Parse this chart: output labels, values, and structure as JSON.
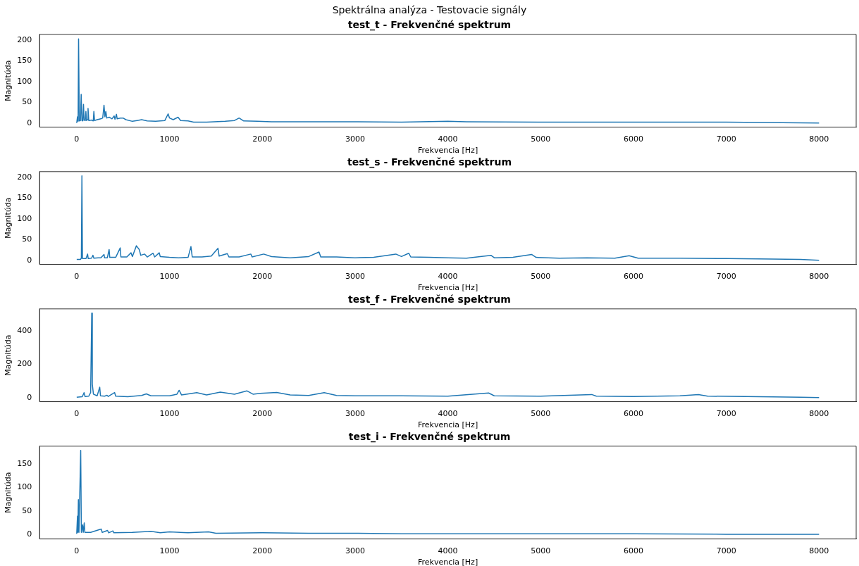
{
  "chart_data": [
    {
      "type": "line",
      "title": "Spektrálna analýza - Testovacie signály",
      "subtitle": "test_t - Frekvenčné spektrum",
      "xlabel": "Frekvencia [Hz]",
      "ylabel": "Magnitúda",
      "color": "#1f77b4",
      "xlim": [
        -400,
        8400
      ],
      "ylim": [
        -10,
        214
      ],
      "xticks": [
        0,
        1000,
        2000,
        3000,
        4000,
        5000,
        6000,
        7000,
        8000
      ],
      "yticks": [
        0,
        50,
        100,
        150,
        200
      ],
      "x": [
        0,
        8,
        15,
        20,
        28,
        40,
        48,
        56,
        66,
        73,
        80,
        92,
        99,
        106,
        116,
        122,
        130,
        160,
        178,
        185,
        192,
        220,
        260,
        280,
        294,
        304,
        314,
        324,
        350,
        380,
        403,
        412,
        428,
        436,
        470,
        500,
        530,
        600,
        650,
        700,
        760,
        850,
        950,
        985,
        1000,
        1040,
        1092,
        1120,
        1200,
        1260,
        1400,
        1600,
        1700,
        1750,
        1800,
        1950,
        2100,
        2500,
        3000,
        3500,
        4000,
        4200,
        5000,
        6000,
        7000,
        7600,
        8000
      ],
      "values": [
        0,
        15,
        4,
        203,
        5,
        6,
        69,
        6,
        5,
        45,
        7,
        6,
        28,
        6,
        8,
        35,
        6,
        7,
        5,
        28,
        6,
        8,
        10,
        12,
        43,
        15,
        28,
        12,
        14,
        10,
        17,
        9,
        21,
        10,
        12,
        12,
        8,
        4,
        6,
        8,
        5,
        4,
        6,
        22,
        12,
        8,
        14,
        6,
        5,
        2,
        2,
        4,
        6,
        12,
        5,
        4,
        3,
        3,
        3,
        2,
        4,
        3,
        2,
        2,
        2,
        1,
        0
      ]
    },
    {
      "type": "line",
      "title": "test_s - Frekvenčné spektrum",
      "xlabel": "Frekvencia [Hz]",
      "ylabel": "Magnitúda",
      "color": "#1f77b4",
      "xlim": [
        -400,
        8400
      ],
      "ylim": [
        -10,
        214
      ],
      "xticks": [
        0,
        1000,
        2000,
        3000,
        4000,
        5000,
        6000,
        7000,
        8000
      ],
      "yticks": [
        0,
        50,
        100,
        150,
        200
      ],
      "x": [
        0,
        40,
        50,
        56,
        62,
        100,
        117,
        124,
        160,
        175,
        185,
        230,
        260,
        294,
        300,
        330,
        349,
        356,
        420,
        469,
        476,
        540,
        585,
        600,
        643,
        674,
        690,
        732,
        760,
        823,
        840,
        889,
        900,
        1000,
        1100,
        1200,
        1231,
        1245,
        1350,
        1450,
        1522,
        1535,
        1623,
        1640,
        1750,
        1876,
        1890,
        2015,
        2100,
        2300,
        2500,
        2611,
        2630,
        2800,
        3000,
        3200,
        3439,
        3500,
        3578,
        3600,
        3800,
        4000,
        4200,
        4464,
        4500,
        4700,
        4902,
        4950,
        5200,
        5500,
        5800,
        5953,
        6050,
        6500,
        7000,
        7500,
        7800,
        8000
      ],
      "values": [
        2,
        2,
        5,
        204,
        4,
        4,
        15,
        4,
        5,
        12,
        5,
        6,
        6,
        14,
        6,
        6,
        26,
        7,
        7,
        30,
        8,
        8,
        18,
        9,
        35,
        26,
        12,
        15,
        8,
        17,
        8,
        18,
        9,
        7,
        6,
        7,
        33,
        8,
        8,
        10,
        29,
        10,
        16,
        8,
        8,
        15,
        8,
        15,
        9,
        6,
        9,
        20,
        8,
        8,
        6,
        7,
        15,
        9,
        17,
        8,
        7,
        6,
        5,
        12,
        6,
        7,
        14,
        7,
        5,
        6,
        5,
        11,
        5,
        5,
        4,
        3,
        2,
        0
      ]
    },
    {
      "type": "line",
      "title": "test_f - Frekvenčné spektrum",
      "xlabel": "Frekvencia [Hz]",
      "ylabel": "Magnitúda",
      "color": "#1f77b4",
      "xlim": [
        -400,
        8400
      ],
      "ylim": [
        -25,
        530
      ],
      "xticks": [
        0,
        1000,
        2000,
        3000,
        4000,
        5000,
        6000,
        7000,
        8000
      ],
      "yticks": [
        0,
        200,
        400
      ],
      "x": [
        0,
        60,
        79,
        90,
        130,
        150,
        162,
        168,
        180,
        220,
        248,
        256,
        300,
        327,
        340,
        408,
        420,
        550,
        700,
        750,
        800,
        1000,
        1080,
        1104,
        1130,
        1294,
        1400,
        1547,
        1700,
        1833,
        1900,
        1978,
        2155,
        2300,
        2500,
        2667,
        2800,
        3000,
        3500,
        4000,
        4439,
        4500,
        5000,
        5550,
        5600,
        6000,
        6500,
        6700,
        6800,
        7200,
        7500,
        7800,
        8000
      ],
      "values": [
        2,
        5,
        29,
        6,
        8,
        30,
        505,
        80,
        20,
        10,
        62,
        10,
        8,
        13,
        6,
        30,
        8,
        5,
        12,
        22,
        10,
        10,
        20,
        43,
        15,
        29,
        15,
        32,
        20,
        40,
        20,
        25,
        30,
        15,
        12,
        29,
        12,
        10,
        10,
        8,
        27,
        10,
        8,
        18,
        8,
        6,
        10,
        18,
        8,
        6,
        4,
        2,
        0
      ]
    },
    {
      "type": "line",
      "title": "test_i - Frekvenčné spektrum",
      "xlabel": "Frekvencia [Hz]",
      "ylabel": "Magnitúda",
      "color": "#1f77b4",
      "xlim": [
        -400,
        8400
      ],
      "ylim": [
        -9,
        187
      ],
      "xticks": [
        0,
        1000,
        2000,
        3000,
        4000,
        5000,
        6000,
        7000,
        8000
      ],
      "yticks": [
        0,
        50,
        100,
        150
      ],
      "x": [
        0,
        8,
        12,
        18,
        24,
        43,
        50,
        63,
        70,
        81,
        88,
        150,
        264,
        275,
        332,
        345,
        390,
        400,
        600,
        800,
        900,
        1000,
        1200,
        1421,
        1500,
        2000,
        2500,
        3000,
        3500,
        4000,
        5000,
        6000,
        7000,
        8000
      ],
      "values": [
        2,
        39,
        5,
        74,
        5,
        178,
        5,
        21,
        5,
        25,
        5,
        5,
        12,
        5,
        9,
        4,
        8,
        4,
        5,
        7,
        4,
        6,
        4,
        6,
        3,
        4,
        3,
        3,
        2,
        2,
        2,
        2,
        1,
        1
      ]
    }
  ]
}
